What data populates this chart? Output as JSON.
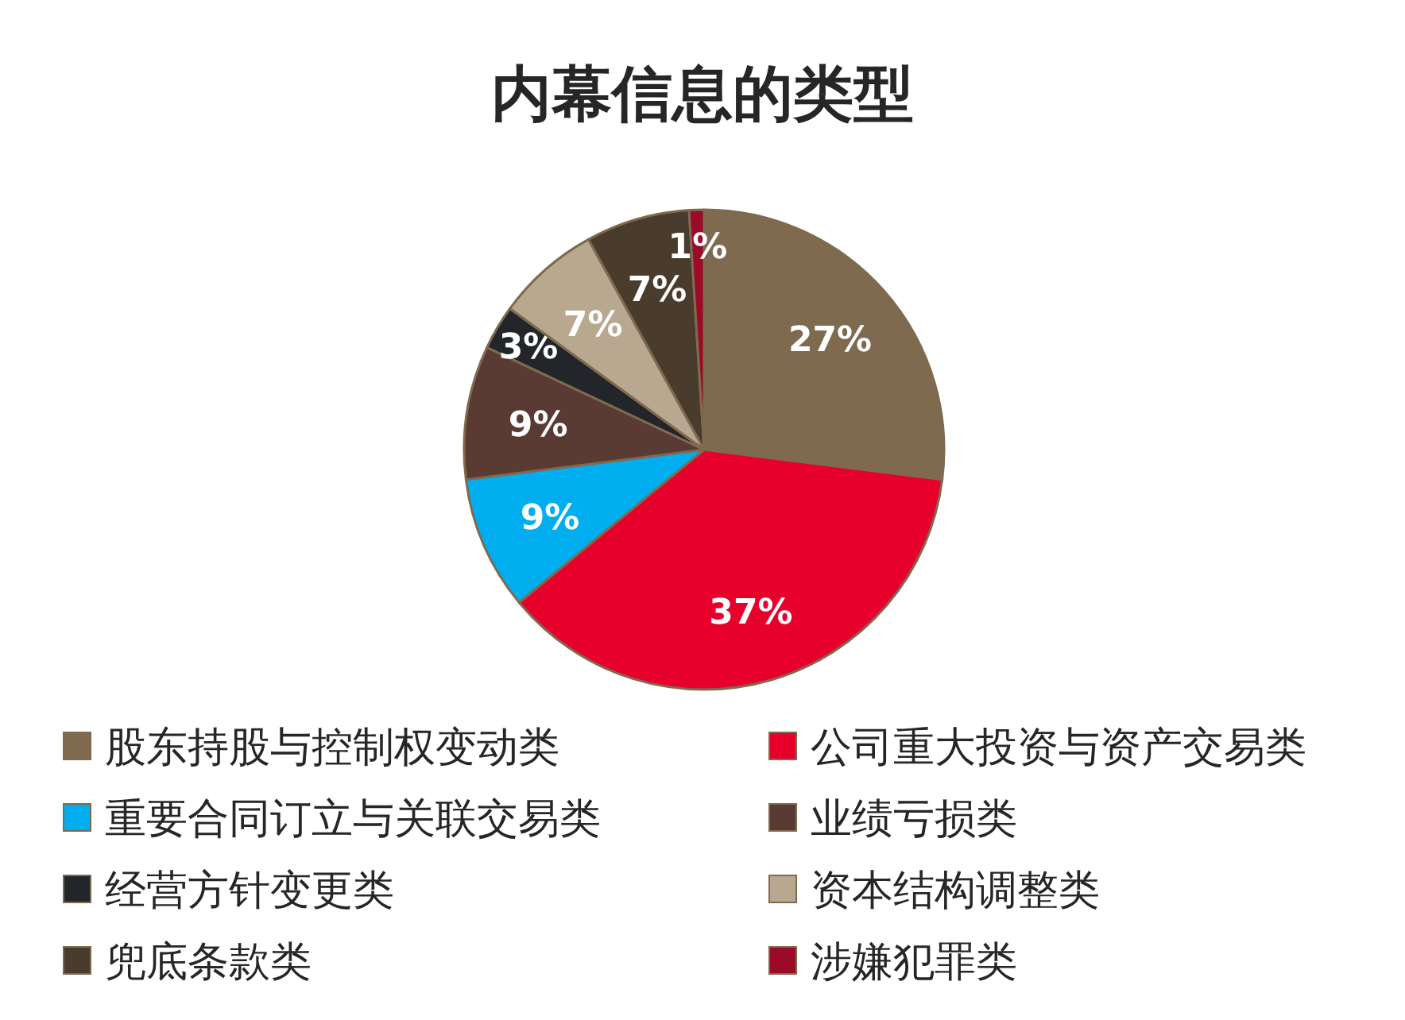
{
  "chart_data": {
    "type": "pie",
    "title": "内幕信息的类型",
    "categories": [
      "股东持股与控制权变动类",
      "公司重大投资与资产交易类",
      "重要合同订立与关联交易类",
      "业绩亏损类",
      "经营方针变更类",
      "资本结构调整类",
      "兜底条款类",
      "涉嫌犯罪类"
    ],
    "values": [
      27,
      37,
      9,
      9,
      3,
      7,
      7,
      1
    ],
    "value_labels": [
      "27%",
      "37%",
      "9%",
      "9%",
      "3%",
      "7%",
      "7%",
      "1%"
    ],
    "colors": [
      "#7f6a4f",
      "#e8002d",
      "#00aeef",
      "#5a3b34",
      "#22262a",
      "#b8a88f",
      "#4a3c2c",
      "#9b0a26"
    ],
    "legend": "bottom"
  }
}
